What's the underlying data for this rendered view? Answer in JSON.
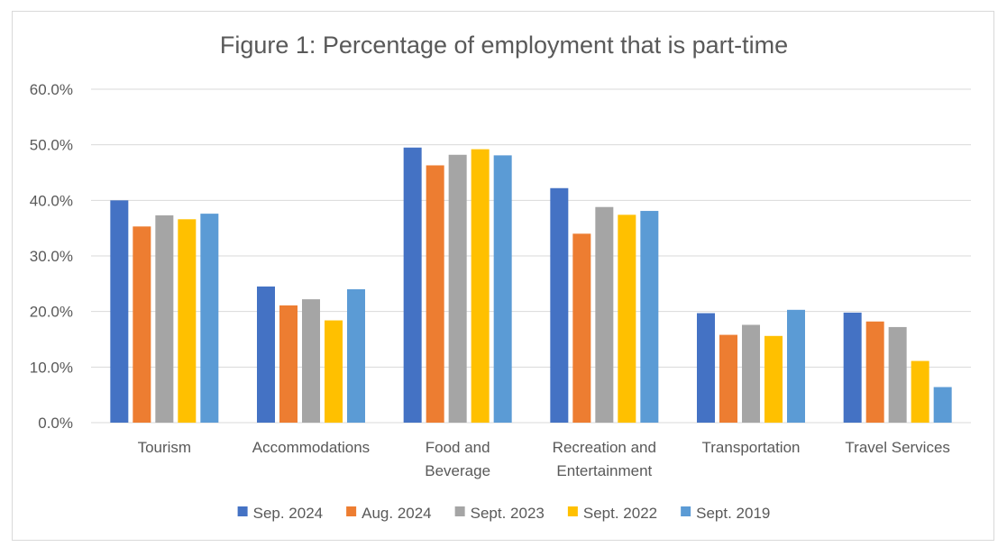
{
  "chart_data": {
    "type": "bar",
    "title": "Figure 1: Percentage of employment that is part-time",
    "xlabel": "",
    "ylabel": "",
    "ylim": [
      0,
      60
    ],
    "y_ticks": [
      "0.0%",
      "10.0%",
      "20.0%",
      "30.0%",
      "40.0%",
      "50.0%",
      "60.0%"
    ],
    "grid": true,
    "legend_position": "bottom",
    "categories": [
      [
        "Tourism"
      ],
      [
        "Accommodations"
      ],
      [
        "Food and",
        "Beverage"
      ],
      [
        "Recreation and",
        "Entertainment"
      ],
      [
        "Transportation"
      ],
      [
        "Travel Services"
      ]
    ],
    "series": [
      {
        "name": "Sep. 2024",
        "color": "#4472c4",
        "values": [
          40.0,
          24.5,
          49.5,
          42.2,
          19.7,
          19.8
        ]
      },
      {
        "name": "Aug. 2024",
        "color": "#ed7d31",
        "values": [
          35.3,
          21.1,
          46.3,
          34.0,
          15.8,
          18.2
        ]
      },
      {
        "name": "Sept. 2023",
        "color": "#a5a5a5",
        "values": [
          37.3,
          22.2,
          48.2,
          38.8,
          17.6,
          17.2
        ]
      },
      {
        "name": "Sept. 2022",
        "color": "#ffc000",
        "values": [
          36.6,
          18.4,
          49.2,
          37.4,
          15.6,
          11.1
        ]
      },
      {
        "name": "Sept. 2019",
        "color": "#5b9bd5",
        "values": [
          37.6,
          24.0,
          48.1,
          38.1,
          20.3,
          6.4
        ]
      }
    ]
  }
}
